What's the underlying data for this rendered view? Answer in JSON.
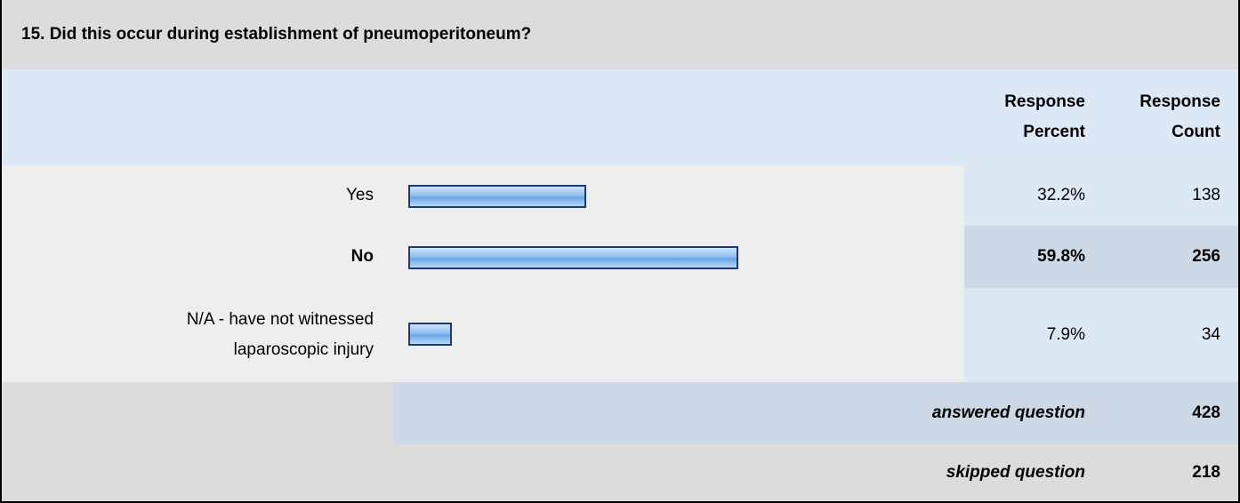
{
  "title": "15. Did this occur during establishment of pneumoperitoneum?",
  "columns": [
    "Response Percent",
    "Response Count"
  ],
  "rows": [
    {
      "label": "Yes",
      "percent": 32.2,
      "percent_label": "32.2%",
      "count": 138
    },
    {
      "label": "No",
      "percent": 59.8,
      "percent_label": "59.8%",
      "count": 256
    },
    {
      "label": "N/A - have not witnessed laparoscopic injury",
      "percent": 7.9,
      "percent_label": "7.9%",
      "count": 34
    }
  ],
  "answered": {
    "label": "answered question",
    "count": 428
  },
  "skipped": {
    "label": "skipped question",
    "count": 218
  }
}
